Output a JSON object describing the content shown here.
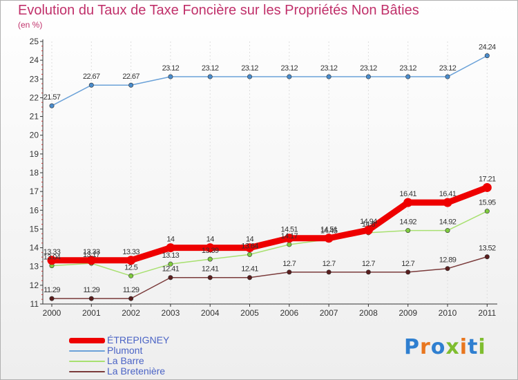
{
  "chart_data": {
    "type": "line",
    "title": "Evolution du Taux de Taxe Foncière sur les Propriétés Non Bâties",
    "ylabel": "(en %)",
    "xlabel": "",
    "ylim": [
      11,
      25
    ],
    "yticks": [
      11,
      12,
      13,
      14,
      15,
      16,
      17,
      18,
      19,
      20,
      21,
      22,
      23,
      24,
      25
    ],
    "categories": [
      "2000",
      "2001",
      "2002",
      "2003",
      "2004",
      "2005",
      "2006",
      "2007",
      "2008",
      "2009",
      "2010",
      "2011"
    ],
    "series": [
      {
        "name": "ÉTREPIGNEY",
        "color": "#ee0000",
        "marker": "#ee0000",
        "values": [
          13.33,
          13.33,
          13.33,
          14,
          14,
          14,
          14.51,
          14.51,
          14.94,
          16.41,
          16.41,
          17.21
        ],
        "labels": [
          "13.33",
          "13.33",
          "13.33",
          "14",
          "14",
          "14",
          "14.51",
          "14.51",
          "14.94",
          "16.41",
          "16.41",
          "17.21"
        ]
      },
      {
        "name": "Plumont",
        "color": "#6aa1d8",
        "marker": "#4a8ccc",
        "values": [
          21.57,
          22.67,
          22.67,
          23.12,
          23.12,
          23.12,
          23.12,
          23.12,
          23.12,
          23.12,
          23.12,
          24.24
        ],
        "labels": [
          "21.57",
          "22.67",
          "22.67",
          "23.12",
          "23.12",
          "23.12",
          "23.12",
          "23.12",
          "23.12",
          "23.12",
          "23.12",
          "24.24"
        ]
      },
      {
        "name": "La Barre",
        "color": "#a8e070",
        "marker": "#7fcb3f",
        "values": [
          13.04,
          13.17,
          12.5,
          13.13,
          13.39,
          13.64,
          14.17,
          14.45,
          14.8,
          14.92,
          14.92,
          15.95
        ],
        "labels": [
          "13.04",
          "13.17",
          "12.5",
          "13.13",
          "13.39",
          "13.64",
          "14.17",
          "14.45",
          "14.8",
          "14.92",
          "14.92",
          "15.95"
        ]
      },
      {
        "name": "La Bretenière",
        "color": "#7a3a3a",
        "marker": "#5a1e1e",
        "values": [
          11.29,
          11.29,
          11.29,
          12.41,
          12.41,
          12.41,
          12.7,
          12.7,
          12.7,
          12.7,
          12.89,
          13.52
        ],
        "labels": [
          "11.29",
          "11.29",
          "11.29",
          "12.41",
          "12.41",
          "12.41",
          "12.7",
          "12.7",
          "12.7",
          "12.7",
          "12.89",
          "13.52"
        ]
      }
    ],
    "legend": "bottom-left"
  },
  "logo": {
    "letters": [
      "P",
      "r",
      "o",
      "x",
      "i",
      "t",
      "i"
    ],
    "colors": [
      "#2f7fd0",
      "#e8761e",
      "#2f7fd0",
      "#7fbd2f",
      "#e8761e",
      "#2f7fd0",
      "#7fbd2f"
    ]
  }
}
